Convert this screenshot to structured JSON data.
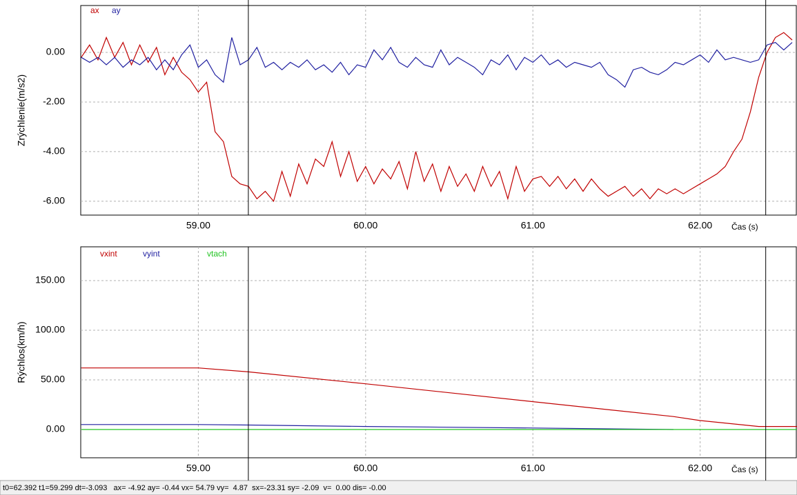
{
  "chart_data": [
    {
      "type": "line",
      "ylabel": "Zrýchlenie(m/s2)",
      "xlabel": "Čas (s)",
      "xlim": [
        58.297,
        62.579
      ],
      "ylim": [
        -6.56,
        1.89
      ],
      "xticks": [
        {
          "value": 59,
          "label": "59.00"
        },
        {
          "value": 60,
          "label": "60.00"
        },
        {
          "value": 61,
          "label": "61.00"
        },
        {
          "value": 62,
          "label": "62.00"
        }
      ],
      "yticks": [
        {
          "value": 0,
          "label": "0.00"
        },
        {
          "value": -2,
          "label": "-2.00"
        },
        {
          "value": -4,
          "label": "-4.00"
        },
        {
          "value": -6,
          "label": "-6.00"
        }
      ],
      "grid": true,
      "x": [
        58.3,
        58.35,
        58.4,
        58.45,
        58.5,
        58.55,
        58.6,
        58.65,
        58.7,
        58.75,
        58.8,
        58.85,
        58.9,
        58.95,
        59.0,
        59.05,
        59.1,
        59.15,
        59.2,
        59.25,
        59.3,
        59.35,
        59.4,
        59.45,
        59.5,
        59.55,
        59.6,
        59.65,
        59.7,
        59.75,
        59.8,
        59.85,
        59.9,
        59.95,
        60.0,
        60.05,
        60.1,
        60.15,
        60.2,
        60.25,
        60.3,
        60.35,
        60.4,
        60.45,
        60.5,
        60.55,
        60.6,
        60.65,
        60.7,
        60.75,
        60.8,
        60.85,
        60.9,
        60.95,
        61.0,
        61.05,
        61.1,
        61.15,
        61.2,
        61.25,
        61.3,
        61.35,
        61.4,
        61.45,
        61.5,
        61.55,
        61.6,
        61.65,
        61.7,
        61.75,
        61.8,
        61.85,
        61.9,
        61.95,
        62.0,
        62.05,
        62.1,
        62.15,
        62.2,
        62.25,
        62.3,
        62.35,
        62.4,
        62.45,
        62.5,
        62.55
      ],
      "series": [
        {
          "name": "ax",
          "color": "#c00000",
          "values": [
            -0.2,
            0.3,
            -0.3,
            0.6,
            -0.2,
            0.4,
            -0.5,
            0.3,
            -0.4,
            0.2,
            -0.9,
            -0.2,
            -0.8,
            -1.1,
            -1.6,
            -1.2,
            -3.2,
            -3.6,
            -5.0,
            -5.3,
            -5.4,
            -5.9,
            -5.6,
            -6.0,
            -4.8,
            -5.8,
            -4.5,
            -5.3,
            -4.3,
            -4.6,
            -3.6,
            -5.0,
            -4.0,
            -5.2,
            -4.6,
            -5.3,
            -4.7,
            -5.1,
            -4.4,
            -5.5,
            -4.0,
            -5.2,
            -4.5,
            -5.6,
            -4.6,
            -5.4,
            -4.9,
            -5.6,
            -4.6,
            -5.4,
            -4.8,
            -5.9,
            -4.6,
            -5.6,
            -5.1,
            -5.0,
            -5.4,
            -5.0,
            -5.5,
            -5.1,
            -5.6,
            -5.1,
            -5.5,
            -5.8,
            -5.6,
            -5.4,
            -5.8,
            -5.5,
            -5.9,
            -5.5,
            -5.7,
            -5.5,
            -5.7,
            -5.5,
            -5.3,
            -5.1,
            -4.9,
            -4.6,
            -4.0,
            -3.5,
            -2.4,
            -1.0,
            0.0,
            0.6,
            0.8,
            0.5
          ]
        },
        {
          "name": "ay",
          "color": "#1f1fa0",
          "values": [
            -0.2,
            -0.4,
            -0.2,
            -0.5,
            -0.2,
            -0.6,
            -0.3,
            -0.5,
            -0.2,
            -0.7,
            -0.3,
            -0.7,
            -0.1,
            0.3,
            -0.6,
            -0.3,
            -0.9,
            -1.2,
            0.6,
            -0.5,
            -0.3,
            0.2,
            -0.6,
            -0.4,
            -0.7,
            -0.4,
            -0.6,
            -0.3,
            -0.7,
            -0.5,
            -0.8,
            -0.4,
            -0.9,
            -0.5,
            -0.6,
            0.1,
            -0.3,
            0.2,
            -0.4,
            -0.6,
            -0.2,
            -0.5,
            -0.6,
            0.1,
            -0.5,
            -0.2,
            -0.4,
            -0.6,
            -0.9,
            -0.3,
            -0.5,
            -0.1,
            -0.7,
            -0.2,
            -0.4,
            -0.1,
            -0.5,
            -0.3,
            -0.6,
            -0.4,
            -0.5,
            -0.6,
            -0.4,
            -0.9,
            -1.1,
            -1.4,
            -0.7,
            -0.6,
            -0.8,
            -0.9,
            -0.7,
            -0.4,
            -0.5,
            -0.3,
            -0.1,
            -0.4,
            0.1,
            -0.3,
            -0.2,
            -0.3,
            -0.4,
            -0.3,
            0.3,
            0.4,
            0.1,
            0.4
          ]
        }
      ]
    },
    {
      "type": "line",
      "ylabel": "Rýchlos(km/h)",
      "xlabel": "Čas (s)",
      "xlim": [
        58.297,
        62.579
      ],
      "ylim": [
        -28.5,
        184
      ],
      "xticks": [
        {
          "value": 59,
          "label": "59.00"
        },
        {
          "value": 60,
          "label": "60.00"
        },
        {
          "value": 61,
          "label": "61.00"
        },
        {
          "value": 62,
          "label": "62.00"
        }
      ],
      "yticks": [
        {
          "value": 150,
          "label": "150.00"
        },
        {
          "value": 100,
          "label": "100.00"
        },
        {
          "value": 50,
          "label": "50.00"
        },
        {
          "value": 0,
          "label": "0.00"
        }
      ],
      "grid": true,
      "x": [
        58.3,
        59.0,
        59.3,
        60.0,
        61.0,
        61.84,
        62.0,
        62.35,
        62.58
      ],
      "series": [
        {
          "name": "vxint",
          "color": "#c00000",
          "values": [
            62,
            62,
            58,
            46,
            28,
            13,
            9,
            3,
            3
          ]
        },
        {
          "name": "vyint",
          "color": "#1f1fa0",
          "values": [
            5,
            5,
            4.5,
            3,
            1.5,
            0,
            null,
            null,
            null
          ]
        },
        {
          "name": "vtach",
          "color": "#22c322",
          "values": [
            0,
            0,
            0,
            0,
            0,
            0,
            0,
            0,
            0
          ]
        }
      ]
    }
  ],
  "cursors": [
    62.392,
    59.299
  ],
  "status_bar": "t0=62.392 t1=59.299 dt=-3.093   ax= -4.92 ay= -0.44 vx= 54.79 vy=  4.87  sx=-23.31 sy= -2.09  v=  0.00 dis= -0.00"
}
